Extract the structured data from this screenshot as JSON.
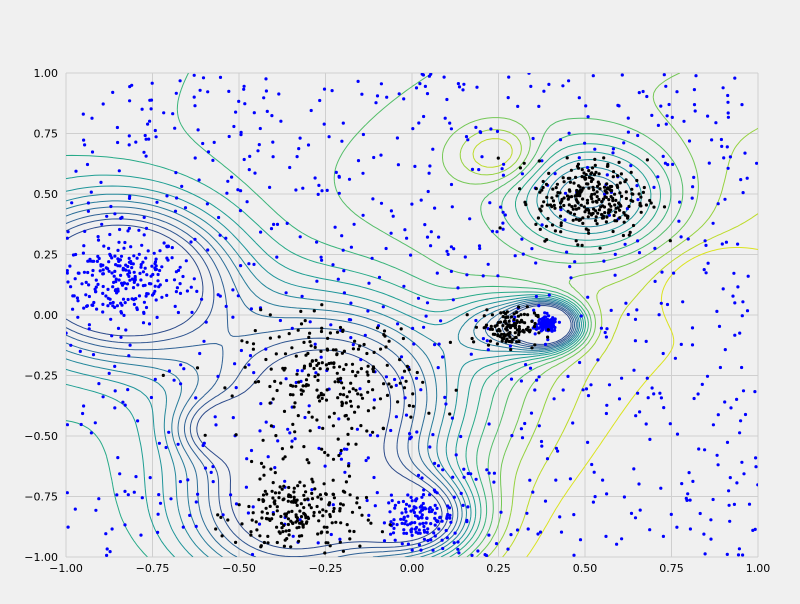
{
  "chart_data": {
    "type": "scatter",
    "title": "",
    "xlabel": "",
    "ylabel": "",
    "xlim": [
      -1.0,
      1.0
    ],
    "ylim": [
      -1.0,
      1.0
    ],
    "grid": true,
    "legend": "none",
    "x_ticks": [
      "−1.00",
      "−0.75",
      "−0.50",
      "−0.25",
      "0.00",
      "0.25",
      "0.50",
      "0.75",
      "1.00"
    ],
    "y_ticks": [
      "−1.00",
      "−0.75",
      "−0.50",
      "−0.25",
      "0.00",
      "0.25",
      "0.50",
      "0.75",
      "1.00"
    ],
    "colors": {
      "background": "#f0f0f0",
      "grid": "#cfcfcf",
      "blue_points": "#0000ff",
      "black_points": "#000000",
      "contour_low": "#2c4a8a",
      "contour_mid": "#1f9c8a",
      "contour_high": "#c8e020"
    },
    "series": [
      {
        "color": "#0000ff",
        "style": "scattered points",
        "clusters": [
          {
            "center": [
              -0.84,
              0.15
            ],
            "spread": 0.09,
            "count": 220
          },
          {
            "center": [
              0.02,
              -0.84
            ],
            "spread": 0.05,
            "count": 130
          },
          {
            "center": [
              0.39,
              -0.04
            ],
            "spread": 0.015,
            "count": 140
          },
          {
            "center": [
              0.0,
              0.0
            ],
            "spread_uniform": 1.0,
            "count": 900
          }
        ]
      },
      {
        "color": "#000000",
        "style": "scattered points",
        "clusters": [
          {
            "center": [
              -0.23,
              -0.27
            ],
            "spread": 0.13,
            "count": 240
          },
          {
            "center": [
              -0.33,
              -0.83
            ],
            "spread": 0.09,
            "count": 220
          },
          {
            "center": [
              0.28,
              -0.05
            ],
            "spread": 0.04,
            "count": 130
          },
          {
            "center": [
              0.52,
              0.48
            ],
            "spread": 0.08,
            "count": 280
          }
        ]
      }
    ],
    "contour_levels": [
      {
        "level": 1.0,
        "color": "#2c4a8a"
      },
      {
        "level": 0.92,
        "color": "#2f5590"
      },
      {
        "level": 0.85,
        "color": "#2f6195"
      },
      {
        "level": 0.78,
        "color": "#2c6e98"
      },
      {
        "level": 0.72,
        "color": "#287c9a"
      },
      {
        "level": 0.66,
        "color": "#24889b"
      },
      {
        "level": 0.6,
        "color": "#1f959a"
      },
      {
        "level": 0.54,
        "color": "#1f9f93"
      },
      {
        "level": 0.48,
        "color": "#27aa88"
      },
      {
        "level": 0.42,
        "color": "#3ab47b"
      },
      {
        "level": 0.36,
        "color": "#55be6a"
      },
      {
        "level": 0.3,
        "color": "#74c855"
      },
      {
        "level": 0.24,
        "color": "#96d23f"
      },
      {
        "level": 0.18,
        "color": "#bddb2a"
      },
      {
        "level": 0.12,
        "color": "#dbe31f"
      }
    ]
  }
}
